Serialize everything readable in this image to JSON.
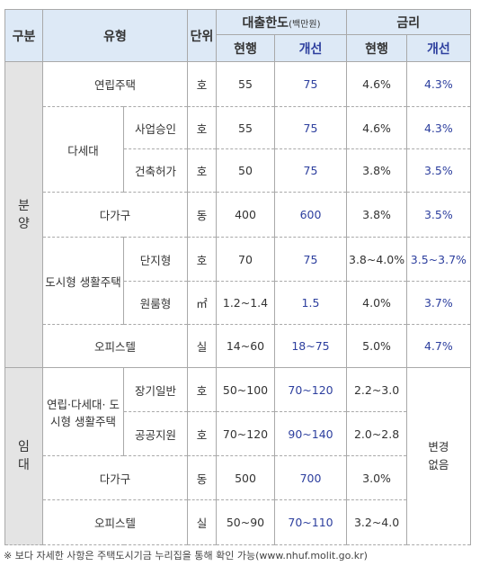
{
  "header": {
    "category": "구분",
    "type": "유형",
    "unit": "단위",
    "loan_limit": "대출한도",
    "loan_unit": "(백만원)",
    "rate": "금리",
    "sub": [
      "현행",
      "개선",
      "현행",
      "개선"
    ]
  },
  "sections": [
    "분양",
    "임대"
  ],
  "rows": [
    {
      "type": "연립주택",
      "unit": "호",
      "loan": [
        55,
        75
      ],
      "rate": [
        "4.6%",
        "4.3%"
      ]
    },
    {
      "type": "다세대",
      "sub": "사업승인",
      "unit": "호",
      "loan": [
        55,
        75
      ],
      "rate": [
        "4.6%",
        "4.3%"
      ]
    },
    {
      "sub": "건축허가",
      "unit": "호",
      "loan": [
        50,
        75
      ],
      "rate": [
        "3.8%",
        "3.5%"
      ]
    },
    {
      "type": "다가구",
      "unit": "동",
      "loan": [
        400,
        600
      ],
      "rate": [
        "3.8%",
        "3.5%"
      ]
    },
    {
      "type": "도시형 생활주택",
      "sub": "단지형",
      "unit": "호",
      "loan": [
        70,
        75
      ],
      "rate": [
        "3.8~4.0%",
        "3.5~3.7%"
      ]
    },
    {
      "sub": "원룸형",
      "unit": "㎡",
      "loan": [
        "1.2~1.4",
        1.5
      ],
      "rate": [
        "4.0%",
        "3.7%"
      ]
    },
    {
      "type": "오피스텔",
      "unit": "실",
      "loan": [
        "14~60",
        "18~75"
      ],
      "rate": [
        "5.0%",
        "4.7%"
      ]
    },
    {
      "type": "연립·다세대· 도시형 생활주택",
      "sub": "장기일반",
      "unit": "호",
      "loan": [
        "50~100",
        "70~120"
      ],
      "rate": [
        "2.2~3.0",
        "변경 없음"
      ]
    },
    {
      "sub": "공공지원",
      "unit": "호",
      "loan": [
        "70~120",
        "90~140"
      ],
      "rate": [
        "2.0~2.8"
      ]
    },
    {
      "type": "다가구",
      "unit": "동",
      "loan": [
        500,
        700
      ],
      "rate": [
        "3.0%"
      ]
    },
    {
      "type": "오피스텔",
      "unit": "실",
      "loan": [
        "50~90",
        "70~110"
      ],
      "rate": [
        "3.2~4.0"
      ]
    }
  ],
  "footnote": "※ 보다 자세한 사항은 주택도시기금 누리집을 통해 확인 가능(www.nhuf.molit.go.kr)"
}
